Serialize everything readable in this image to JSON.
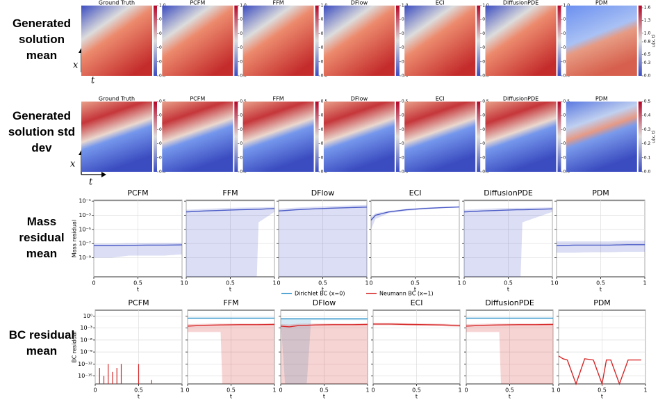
{
  "chart_data": [
    {
      "type": "heatmap-row",
      "row_label": "Generated solution mean",
      "style": "mean",
      "titles": [
        "Ground Truth",
        "PCFM",
        "FFM",
        "DFlow",
        "ECI",
        "DiffusionPDE",
        "PDM"
      ],
      "clim": [
        0,
        1
      ],
      "cticks": [
        {
          "value": 0,
          "label": "0.0"
        },
        {
          "value": 0.2,
          "label": "0.2"
        },
        {
          "value": 0.4,
          "label": "0.4"
        },
        {
          "value": 0.6,
          "label": "0.6"
        },
        {
          "value": 0.8,
          "label": "0.8"
        },
        {
          "value": 1,
          "label": "1.0"
        }
      ],
      "last_clim": [
        0,
        1.65
      ],
      "last_cticks": [
        {
          "value": 0,
          "label": "0.0"
        },
        {
          "value": 0.3,
          "label": "0.3"
        },
        {
          "value": 0.5,
          "label": "0.5"
        },
        {
          "value": 0.8,
          "label": "0.8"
        },
        {
          "value": 1,
          "label": "1.0"
        },
        {
          "value": 1.3,
          "label": "1.3"
        },
        {
          "value": 1.6,
          "label": "1.6"
        }
      ],
      "colorbar_label": "u(x, t)",
      "x_label": "x",
      "t_label": "t"
    },
    {
      "type": "heatmap-row",
      "row_label": "Generated solution std dev",
      "style": "std",
      "titles": [
        "Ground Truth",
        "PCFM",
        "FFM",
        "DFlow",
        "ECI",
        "DiffusionPDE",
        "PDM"
      ],
      "clim": [
        0,
        0.5
      ],
      "cticks": [
        {
          "value": 0,
          "label": "0.0"
        },
        0.1,
        0.2,
        0.3,
        0.4,
        0.5
      ],
      "last_clim": [
        0,
        0.5
      ],
      "last_cticks": [
        {
          "value": 0,
          "label": "0.0"
        },
        0.1,
        0.2,
        0.3,
        0.4,
        0.5
      ],
      "colorbar_label": "u(x, t)",
      "x_label": "x",
      "t_label": "t"
    },
    {
      "type": "line-grid",
      "row_label": "Mass residual mean",
      "ylabel": "Mass residual",
      "xlabel": "t",
      "xlim": [
        0,
        1
      ],
      "xticks": [
        0,
        0.5,
        1
      ],
      "ylim": [
        2e-12,
        0.13
      ],
      "log": true,
      "grid": true,
      "yticks": [
        {
          "value": 1e-09,
          "label": "10⁻⁹"
        },
        {
          "value": 1e-07,
          "label": "10⁻⁷"
        },
        {
          "value": 1e-05,
          "label": "10⁻⁵"
        },
        {
          "value": 0.001,
          "label": "10⁻³"
        },
        {
          "value": 0.1,
          "label": "10⁻¹"
        }
      ],
      "series": [
        {
          "color": "#4b5bc6"
        }
      ],
      "panels": [
        {
          "title": "PCFM",
          "data": [
            {
              "x": [
                0,
                0.2,
                0.4,
                0.6,
                0.8,
                1
              ],
              "values": [
                5e-08,
                5e-08,
                5.5e-08,
                6e-08,
                6e-08,
                6.5e-08
              ],
              "low": [
                1e-09,
                1e-09,
                2e-09,
                2e-09,
                2e-09,
                3e-09
              ],
              "high": [
                1e-07,
                1e-07,
                1.2e-07,
                1.2e-07,
                1.3e-07,
                1.3e-07
              ]
            }
          ]
        },
        {
          "title": "FFM",
          "data": [
            {
              "x": [
                0,
                0.2,
                0.4,
                0.6,
                0.8,
                0.82,
                1
              ],
              "values": [
                0.003,
                0.004,
                0.005,
                0.006,
                0.007,
                0.007,
                0.009
              ],
              "low": [
                2e-12,
                2e-12,
                2e-12,
                2e-12,
                2e-12,
                0.0001,
                0.003
              ],
              "high": [
                0.006,
                0.008,
                0.01,
                0.012,
                0.013,
                0.013,
                0.015
              ]
            }
          ]
        },
        {
          "title": "DFlow",
          "data": [
            {
              "x": [
                0,
                0.2,
                0.4,
                0.6,
                0.8,
                1
              ],
              "values": [
                0.004,
                0.006,
                0.008,
                0.01,
                0.012,
                0.014
              ],
              "low": [
                2e-12,
                2e-12,
                2e-12,
                2e-12,
                2e-12,
                2e-12
              ],
              "high": [
                0.008,
                0.012,
                0.016,
                0.02,
                0.024,
                0.028
              ]
            }
          ]
        },
        {
          "title": "ECI",
          "data": [
            {
              "x": [
                0,
                0.05,
                0.2,
                0.4,
                0.6,
                0.8,
                1
              ],
              "values": [
                0.0002,
                0.001,
                0.003,
                0.006,
                0.009,
                0.012,
                0.015
              ],
              "low": [
                1e-05,
                0.0003,
                0.002,
                0.004,
                0.007,
                0.01,
                0.012
              ],
              "high": [
                0.0005,
                0.002,
                0.004,
                0.008,
                0.012,
                0.015,
                0.018
              ]
            }
          ]
        },
        {
          "title": "DiffusionPDE",
          "data": [
            {
              "x": [
                0,
                0.2,
                0.4,
                0.6,
                0.64,
                0.66,
                1
              ],
              "values": [
                0.003,
                0.004,
                0.005,
                0.006,
                0.006,
                0.006,
                0.008
              ],
              "low": [
                2e-12,
                2e-12,
                2e-12,
                2e-12,
                2e-12,
                0.0001,
                0.003
              ],
              "high": [
                0.006,
                0.008,
                0.01,
                0.011,
                0.011,
                0.011,
                0.013
              ]
            }
          ]
        },
        {
          "title": "PDM",
          "data": [
            {
              "x": [
                0,
                0.2,
                0.4,
                0.6,
                0.8,
                1
              ],
              "values": [
                5e-08,
                6e-08,
                6e-08,
                6e-08,
                7e-08,
                7e-08
              ],
              "low": [
                5e-09,
                5e-09,
                6e-09,
                6e-09,
                7e-09,
                7e-09
              ],
              "high": [
                2e-07,
                2e-07,
                2e-07,
                2e-07,
                2.5e-07,
                2.5e-07
              ]
            }
          ]
        }
      ]
    },
    {
      "type": "line-grid",
      "row_label": "BC residual mean",
      "ylabel": "BC residual",
      "xlabel": "t",
      "xlim": [
        0,
        1
      ],
      "xticks": [
        0,
        0.5,
        1
      ],
      "ylim": [
        1e-17,
        30
      ],
      "log": true,
      "grid": true,
      "yticks": [
        {
          "value": 1e-15,
          "label": "10⁻¹⁵"
        },
        {
          "value": 1e-12,
          "label": "10⁻¹²"
        },
        {
          "value": 1e-09,
          "label": "10⁻⁹"
        },
        {
          "value": 1e-06,
          "label": "10⁻⁶"
        },
        {
          "value": 0.001,
          "label": "10⁻³"
        },
        {
          "value": 1,
          "label": "10⁰"
        }
      ],
      "series": [
        {
          "name": "Dirichlet BC (x=0)",
          "color": "#2a8fc9"
        },
        {
          "name": "Neumann BC (x=1)",
          "color": "#d62728"
        }
      ],
      "panels": [
        {
          "title": "PCFM",
          "stem": true,
          "data": [
            null,
            {
              "x": [
                0.05,
                0.1,
                0.15,
                0.2,
                0.25,
                0.3,
                0.5,
                0.65
              ],
              "values": [
                1e-13,
                1e-15,
                1e-12,
                1e-14,
                1e-13,
                1e-12,
                1e-12,
                1e-16
              ]
            }
          ]
        },
        {
          "title": "FFM",
          "data": [
            {
              "x": [
                0,
                1
              ],
              "values": [
                0.3,
                0.3
              ]
            },
            {
              "x": [
                0,
                0.2,
                0.38,
                0.4,
                0.6,
                0.8,
                1
              ],
              "values": [
                0.003,
                0.005,
                0.006,
                0.006,
                0.007,
                0.007,
                0.008
              ],
              "low": [
                0.0001,
                0.0001,
                0.0001,
                1e-17,
                1e-17,
                1e-17,
                1e-17
              ],
              "high": [
                0.01,
                0.012,
                0.013,
                0.013,
                0.014,
                0.014,
                0.015
              ]
            }
          ]
        },
        {
          "title": "DFlow",
          "data": [
            {
              "x": [
                0,
                0.05,
                0.1,
                0.3,
                0.35,
                1
              ],
              "values": [
                0.2,
                0.2,
                0.2,
                0.2,
                0.2,
                0.2
              ],
              "low": [
                0.1,
                1e-17,
                1e-17,
                1e-17,
                0.1,
                0.1
              ],
              "high": [
                0.3,
                0.3,
                0.3,
                0.3,
                0.3,
                0.3
              ]
            },
            {
              "x": [
                0,
                0.1,
                0.2,
                0.4,
                0.6,
                0.8,
                1
              ],
              "values": [
                0.003,
                0.002,
                0.004,
                0.006,
                0.007,
                0.007,
                0.008
              ],
              "low": [
                1e-17,
                1e-17,
                1e-17,
                1e-17,
                1e-17,
                1e-17,
                1e-17
              ],
              "high": [
                0.01,
                0.008,
                0.012,
                0.013,
                0.014,
                0.014,
                0.015
              ]
            }
          ]
        },
        {
          "title": "ECI",
          "data": [
            null,
            {
              "x": [
                0,
                0.2,
                0.4,
                0.6,
                0.8,
                1
              ],
              "values": [
                0.01,
                0.01,
                0.008,
                0.007,
                0.006,
                0.004
              ],
              "low": [
                0.005,
                0.005,
                0.004,
                0.0035,
                0.003,
                0.002
              ],
              "high": [
                0.02,
                0.02,
                0.016,
                0.014,
                0.012,
                0.008
              ]
            }
          ]
        },
        {
          "title": "DiffusionPDE",
          "data": [
            {
              "x": [
                0,
                1
              ],
              "values": [
                0.3,
                0.3
              ]
            },
            {
              "x": [
                0,
                0.2,
                0.38,
                0.4,
                0.6,
                0.8,
                1
              ],
              "values": [
                0.003,
                0.005,
                0.006,
                0.006,
                0.007,
                0.007,
                0.008
              ],
              "low": [
                0.0001,
                0.0001,
                0.0001,
                1e-17,
                1e-17,
                1e-17,
                1e-17
              ],
              "high": [
                0.01,
                0.012,
                0.013,
                0.013,
                0.014,
                0.014,
                0.015
              ]
            }
          ]
        },
        {
          "title": "PDM",
          "data": [
            null,
            {
              "x": [
                0,
                0.05,
                0.1,
                0.2,
                0.3,
                0.4,
                0.5,
                0.55,
                0.6,
                0.7,
                0.8,
                0.9,
                0.95
              ],
              "values": [
                1e-10,
                2e-11,
                1e-11,
                1e-17,
                2e-11,
                1e-11,
                1e-17,
                1e-11,
                1e-11,
                1e-17,
                1e-11,
                1e-11,
                1e-11
              ]
            }
          ]
        }
      ]
    }
  ]
}
